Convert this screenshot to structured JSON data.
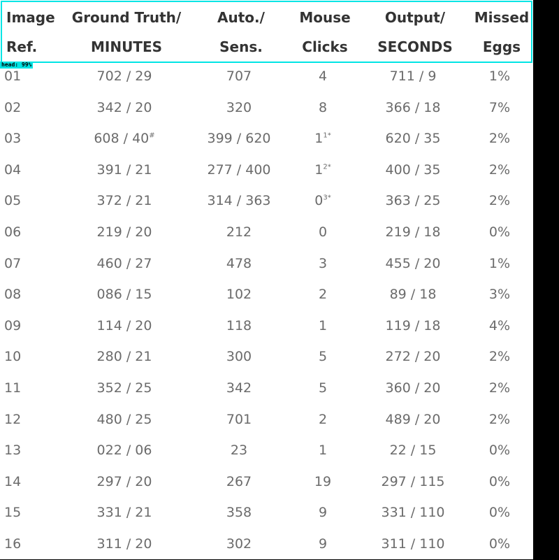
{
  "detection": {
    "label": "head: 99%",
    "box_color": "#00e5e5"
  },
  "table": {
    "headers": [
      {
        "line1": "Image",
        "line2": "Ref."
      },
      {
        "line1": "Ground Truth/",
        "line2": "MINUTES"
      },
      {
        "line1": "Auto./",
        "line2": "Sens."
      },
      {
        "line1": "Mouse",
        "line2": "Clicks"
      },
      {
        "line1": "Output/",
        "line2": "SECONDS"
      },
      {
        "line1": "Missed",
        "line2": "Eggs"
      }
    ],
    "rows": [
      {
        "ref": "01",
        "ground_truth": "702 / 29",
        "gt_note": "",
        "auto": "707",
        "clicks": "4",
        "clicks_note": "",
        "output": "711 / 9",
        "missed": "1%"
      },
      {
        "ref": "02",
        "ground_truth": "342 / 20",
        "gt_note": "",
        "auto": "320",
        "clicks": "8",
        "clicks_note": "",
        "output": "366 / 18",
        "missed": "7%"
      },
      {
        "ref": "03",
        "ground_truth": "608 / 40",
        "gt_note": "#",
        "auto": "399 / 620",
        "clicks": "1",
        "clicks_note": "1*",
        "output": "620 / 35",
        "missed": "2%"
      },
      {
        "ref": "04",
        "ground_truth": "391 / 21",
        "gt_note": "",
        "auto": "277 / 400",
        "clicks": "1",
        "clicks_note": "2*",
        "output": "400 / 35",
        "missed": "2%"
      },
      {
        "ref": "05",
        "ground_truth": "372 / 21",
        "gt_note": "",
        "auto": "314 / 363",
        "clicks": "0",
        "clicks_note": "3*",
        "output": "363 / 25",
        "missed": "2%"
      },
      {
        "ref": "06",
        "ground_truth": "219 / 20",
        "gt_note": "",
        "auto": "212",
        "clicks": "0",
        "clicks_note": "",
        "output": "219 / 18",
        "missed": "0%"
      },
      {
        "ref": "07",
        "ground_truth": "460 / 27",
        "gt_note": "",
        "auto": "478",
        "clicks": "3",
        "clicks_note": "",
        "output": "455 / 20",
        "missed": "1%"
      },
      {
        "ref": "08",
        "ground_truth": "086 / 15",
        "gt_note": "",
        "auto": "102",
        "clicks": "2",
        "clicks_note": "",
        "output": "89 / 18",
        "missed": "3%"
      },
      {
        "ref": "09",
        "ground_truth": "114 / 20",
        "gt_note": "",
        "auto": "118",
        "clicks": "1",
        "clicks_note": "",
        "output": "119 / 18",
        "missed": "4%"
      },
      {
        "ref": "10",
        "ground_truth": "280 / 21",
        "gt_note": "",
        "auto": "300",
        "clicks": "5",
        "clicks_note": "",
        "output": "272 / 20",
        "missed": "2%"
      },
      {
        "ref": "11",
        "ground_truth": "352 / 25",
        "gt_note": "",
        "auto": "342",
        "clicks": "5",
        "clicks_note": "",
        "output": "360 / 20",
        "missed": "2%"
      },
      {
        "ref": "12",
        "ground_truth": "480 / 25",
        "gt_note": "",
        "auto": "701",
        "clicks": "2",
        "clicks_note": "",
        "output": "489 / 20",
        "missed": "2%"
      },
      {
        "ref": "13",
        "ground_truth": "022 / 06",
        "gt_note": "",
        "auto": "23",
        "clicks": "1",
        "clicks_note": "",
        "output": "22 / 15",
        "missed": "0%"
      },
      {
        "ref": "14",
        "ground_truth": "297 / 20",
        "gt_note": "",
        "auto": "267",
        "clicks": "19",
        "clicks_note": "",
        "output": "297 / 115",
        "missed": "0%"
      },
      {
        "ref": "15",
        "ground_truth": "331 / 21",
        "gt_note": "",
        "auto": "358",
        "clicks": "9",
        "clicks_note": "",
        "output": "331 / 110",
        "missed": "0%"
      },
      {
        "ref": "16",
        "ground_truth": "311 / 20",
        "gt_note": "",
        "auto": "302",
        "clicks": "9",
        "clicks_note": "",
        "output": "311 / 110",
        "missed": "0%"
      }
    ]
  }
}
